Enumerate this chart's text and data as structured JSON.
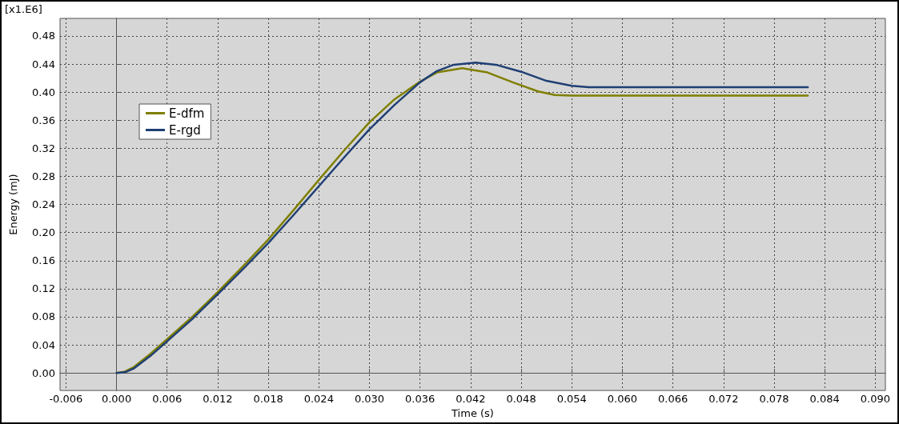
{
  "chart_data": {
    "type": "line",
    "xlabel": "Time (s)",
    "ylabel": "Energy (mJ)",
    "annotations": [
      "[x1.E6]"
    ],
    "xlim": [
      -0.0067,
      0.0912
    ],
    "ylim": [
      -0.025,
      0.505
    ],
    "xticks": [
      {
        "value": -0.006,
        "label": "-0.006"
      },
      {
        "value": 0,
        "label": "0.000"
      },
      {
        "value": 0.006,
        "label": "0.006"
      },
      {
        "value": 0.012,
        "label": "0.012"
      },
      {
        "value": 0.018,
        "label": "0.018"
      },
      {
        "value": 0.024,
        "label": "0.024"
      },
      {
        "value": 0.03,
        "label": "0.030"
      },
      {
        "value": 0.036,
        "label": "0.036"
      },
      {
        "value": 0.042,
        "label": "0.042"
      },
      {
        "value": 0.048,
        "label": "0.048"
      },
      {
        "value": 0.054,
        "label": "0.054"
      },
      {
        "value": 0.06,
        "label": "0.060"
      },
      {
        "value": 0.066,
        "label": "0.066"
      },
      {
        "value": 0.072,
        "label": "0.072"
      },
      {
        "value": 0.078,
        "label": "0.078"
      },
      {
        "value": 0.084,
        "label": "0.084"
      },
      {
        "value": 0.09,
        "label": "0.090"
      }
    ],
    "yticks": [
      {
        "value": 0,
        "label": "0.00"
      },
      {
        "value": 0.04,
        "label": "0.04"
      },
      {
        "value": 0.08,
        "label": "0.08"
      },
      {
        "value": 0.12,
        "label": "0.12"
      },
      {
        "value": 0.16,
        "label": "0.16"
      },
      {
        "value": 0.2,
        "label": "0.20"
      },
      {
        "value": 0.24,
        "label": "0.24"
      },
      {
        "value": 0.28,
        "label": "0.28"
      },
      {
        "value": 0.32,
        "label": "0.32"
      },
      {
        "value": 0.36,
        "label": "0.36"
      },
      {
        "value": 0.4,
        "label": "0.40"
      },
      {
        "value": 0.44,
        "label": "0.44"
      },
      {
        "value": 0.48,
        "label": "0.48"
      }
    ],
    "grid": true,
    "legend": "left",
    "marker": "none",
    "line_style": "solid",
    "series": [
      {
        "name": "E-dfm",
        "color": "#7f7f00",
        "x": [
          0,
          0.001,
          0.002,
          0.004,
          0.006,
          0.009,
          0.012,
          0.015,
          0.018,
          0.021,
          0.024,
          0.027,
          0.03,
          0.033,
          0.036,
          0.038,
          0.041,
          0.044,
          0.047,
          0.05,
          0.052,
          0.054,
          0.06,
          0.07,
          0.082
        ],
        "values": [
          0,
          0.002,
          0.008,
          0.027,
          0.048,
          0.08,
          0.115,
          0.152,
          0.19,
          0.232,
          0.275,
          0.317,
          0.357,
          0.39,
          0.415,
          0.428,
          0.434,
          0.428,
          0.414,
          0.401,
          0.396,
          0.395,
          0.395,
          0.395,
          0.395
        ]
      },
      {
        "name": "E-rgd",
        "color": "#1f3f74",
        "x": [
          0,
          0.001,
          0.002,
          0.004,
          0.006,
          0.009,
          0.012,
          0.015,
          0.018,
          0.021,
          0.024,
          0.027,
          0.03,
          0.033,
          0.036,
          0.038,
          0.04,
          0.0426,
          0.045,
          0.048,
          0.051,
          0.054,
          0.056,
          0.06,
          0.07,
          0.082
        ],
        "values": [
          0,
          0.001,
          0.006,
          0.024,
          0.045,
          0.077,
          0.112,
          0.148,
          0.185,
          0.225,
          0.266,
          0.307,
          0.347,
          0.382,
          0.414,
          0.43,
          0.439,
          0.442,
          0.439,
          0.429,
          0.416,
          0.409,
          0.407,
          0.407,
          0.407,
          0.407
        ]
      }
    ]
  }
}
